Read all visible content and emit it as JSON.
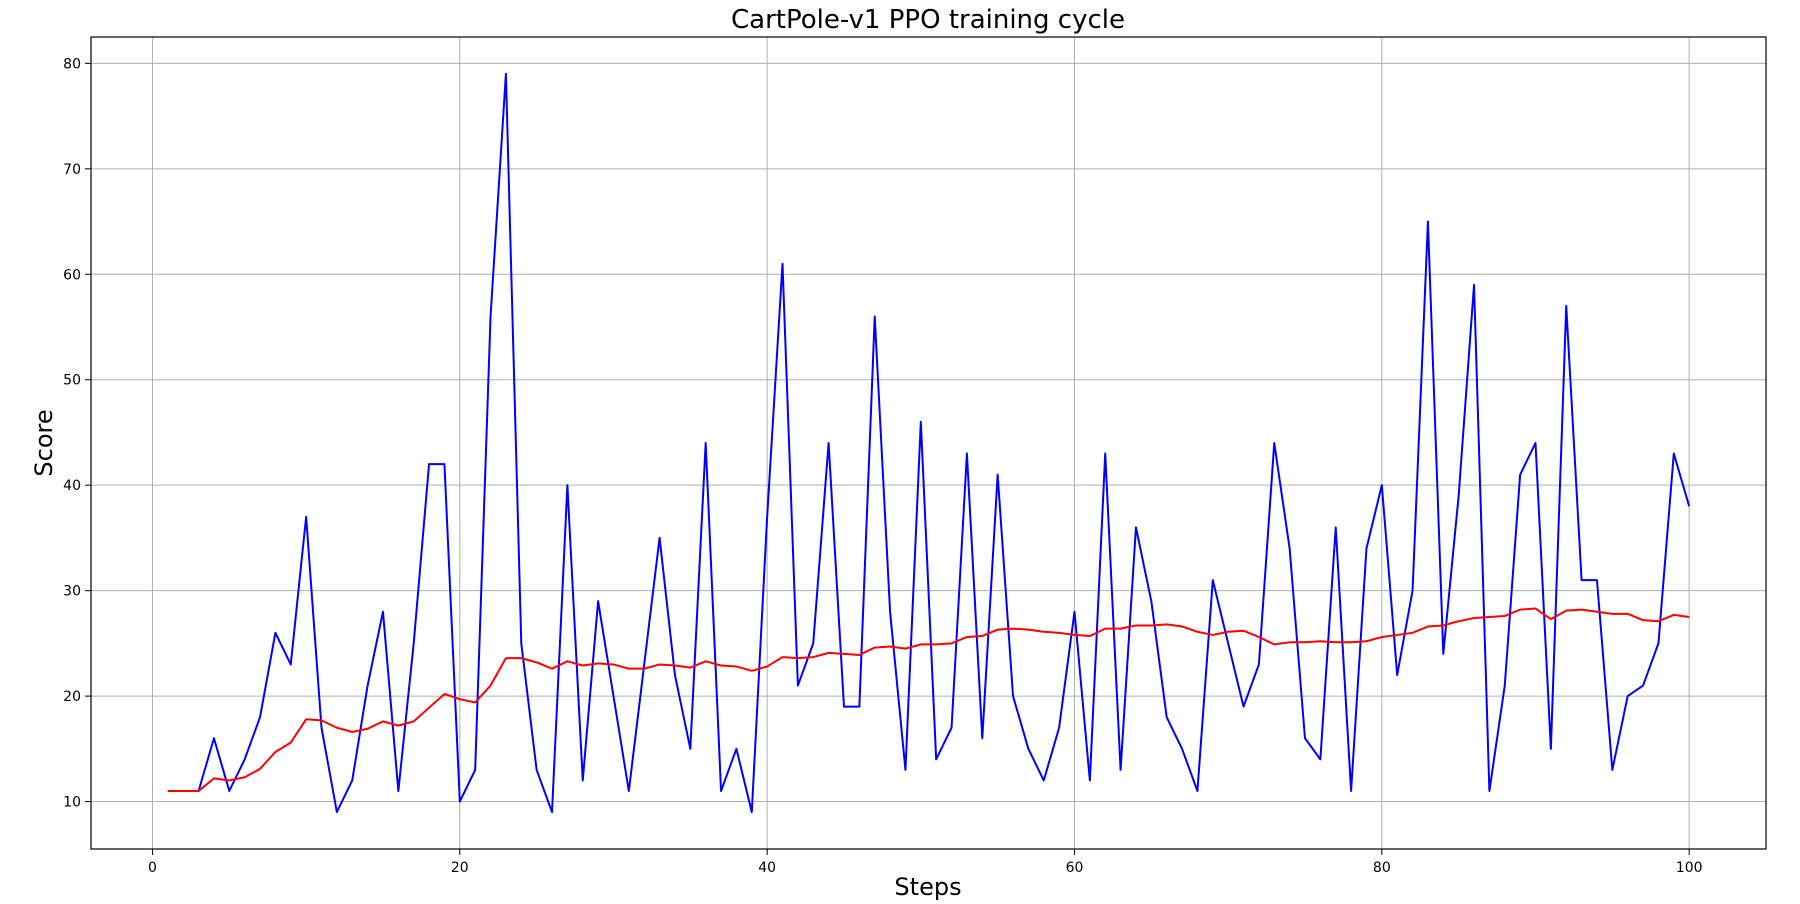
{
  "chart_data": {
    "type": "line",
    "title": "CartPole-v1 PPO training cycle",
    "xlabel": "Steps",
    "ylabel": "Score",
    "xlim": [
      -4,
      105
    ],
    "ylim": [
      5.5,
      82.5
    ],
    "xticks": [
      0,
      20,
      40,
      60,
      80,
      100
    ],
    "yticks": [
      10,
      20,
      30,
      40,
      50,
      60,
      70,
      80
    ],
    "grid": true,
    "legend": "none",
    "x": [
      1,
      2,
      3,
      4,
      5,
      6,
      7,
      8,
      9,
      10,
      11,
      12,
      13,
      14,
      15,
      16,
      17,
      18,
      19,
      20,
      21,
      22,
      23,
      24,
      25,
      26,
      27,
      28,
      29,
      30,
      31,
      32,
      33,
      34,
      35,
      36,
      37,
      38,
      39,
      40,
      41,
      42,
      43,
      44,
      45,
      46,
      47,
      48,
      49,
      50,
      51,
      52,
      53,
      54,
      55,
      56,
      57,
      58,
      59,
      60,
      61,
      62,
      63,
      64,
      65,
      66,
      67,
      68,
      69,
      70,
      71,
      72,
      73,
      74,
      75,
      76,
      77,
      78,
      79,
      80,
      81,
      82,
      83,
      84,
      85,
      86,
      87,
      88,
      89,
      90,
      91,
      92,
      93,
      94,
      95,
      96,
      97,
      98,
      99,
      100
    ],
    "series": [
      {
        "color": "#0000ff",
        "values": [
          11,
          11,
          11,
          16,
          11,
          14,
          18,
          26,
          23,
          37,
          17,
          9,
          12,
          21,
          28,
          11,
          25,
          42,
          42,
          10,
          13,
          56,
          79,
          25,
          13,
          9,
          40,
          12,
          29,
          20,
          11,
          23,
          35,
          22,
          15,
          44,
          11,
          15,
          9,
          37,
          61,
          21,
          25,
          44,
          19,
          19,
          56,
          28,
          13,
          46,
          14,
          17,
          43,
          16,
          41,
          20,
          15,
          12,
          17,
          28,
          12,
          43,
          13,
          36,
          29,
          18,
          15,
          11,
          31,
          25,
          19,
          23,
          44,
          34,
          16,
          14,
          36,
          11,
          34,
          40,
          22,
          30,
          65,
          24,
          39,
          59,
          11,
          21,
          41,
          44,
          15,
          57,
          31,
          31,
          13,
          20,
          21,
          25,
          43,
          38
        ]
      },
      {
        "color": "#ff0000",
        "values": [
          11,
          11,
          11,
          12.2,
          12.0,
          12.3,
          13.1,
          14.7,
          15.6,
          17.8,
          17.7,
          17.0,
          16.6,
          16.9,
          17.6,
          17.2,
          17.6,
          18.9,
          20.2,
          19.7,
          19.4,
          21.0,
          23.6,
          23.6,
          23.2,
          22.6,
          23.3,
          22.9,
          23.1,
          23.0,
          22.6,
          22.6,
          23.0,
          22.9,
          22.7,
          23.3,
          22.9,
          22.8,
          22.4,
          22.8,
          23.7,
          23.6,
          23.7,
          24.1,
          24.0,
          23.9,
          24.6,
          24.7,
          24.5,
          24.9,
          24.9,
          25.0,
          25.6,
          25.7,
          26.3,
          26.4,
          26.3,
          26.1,
          26.0,
          25.8,
          25.7,
          26.4,
          26.4,
          26.7,
          26.7,
          26.8,
          26.6,
          26.1,
          25.8,
          26.1,
          26.2,
          25.6,
          24.9,
          25.1,
          25.1,
          25.2,
          25.1,
          25.1,
          25.2,
          25.6,
          25.8,
          26.0,
          26.6,
          26.7,
          27.1,
          27.4,
          27.5,
          27.6,
          28.2,
          28.3,
          27.3,
          28.1,
          28.2,
          28.0,
          27.8,
          27.8,
          27.2,
          27.1,
          27.7,
          27.5
        ]
      }
    ]
  }
}
